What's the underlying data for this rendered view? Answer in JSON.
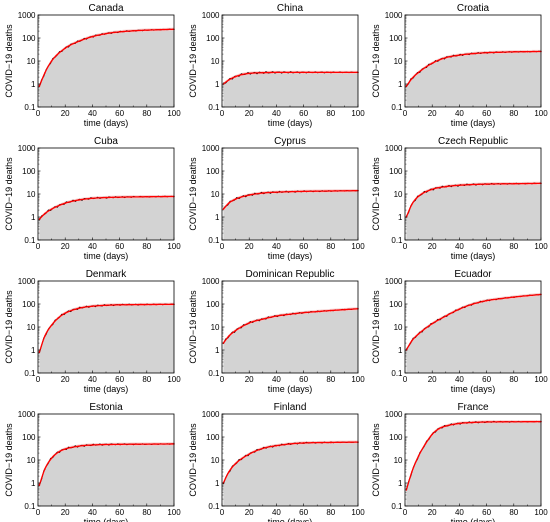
{
  "chart_data": [
    {
      "type": "area",
      "title": "Canada",
      "xlabel": "time (days)",
      "ylabel": "COVID−19 deaths",
      "xlim": [
        0,
        100
      ],
      "ylim": [
        0.1,
        1000
      ],
      "y_scale": "log",
      "x_ticks": [
        "0",
        "20",
        "40",
        "60",
        "80",
        "100"
      ],
      "y_ticks": [
        "0.1",
        "1",
        "10",
        "100",
        "1000"
      ],
      "grid": false,
      "fill_color": "#d3d3d3",
      "line_color": "#ff0000",
      "band_color": "#f4c6c6",
      "data_color": "#000000",
      "series": [
        {
          "x": [
            1,
            5,
            10,
            20,
            30,
            40,
            50,
            60,
            70,
            80,
            90,
            100
          ],
          "values": [
            0.8,
            3,
            10,
            36,
            72,
            115,
            155,
            185,
            205,
            220,
            230,
            240
          ]
        }
      ]
    },
    {
      "type": "area",
      "title": "China",
      "xlabel": "time (days)",
      "ylabel": "COVID−19 deaths",
      "xlim": [
        0,
        100
      ],
      "ylim": [
        0.1,
        1000
      ],
      "y_scale": "log",
      "x_ticks": [
        "0",
        "20",
        "40",
        "60",
        "80",
        "100"
      ],
      "y_ticks": [
        "0.1",
        "1",
        "10",
        "100",
        "1000"
      ],
      "grid": false,
      "fill_color": "#d3d3d3",
      "line_color": "#ff0000",
      "band_color": "#f4c6c6",
      "data_color": "#000000",
      "series": [
        {
          "x": [
            1,
            5,
            10,
            15,
            20,
            30,
            40,
            60,
            80,
            100
          ],
          "values": [
            1,
            1.5,
            2.1,
            2.6,
            2.9,
            3.1,
            3.2,
            3.2,
            3.2,
            3.2
          ]
        }
      ]
    },
    {
      "type": "area",
      "title": "Croatia",
      "xlabel": "time (days)",
      "ylabel": "COVID−19 deaths",
      "xlim": [
        0,
        100
      ],
      "ylim": [
        0.1,
        1000
      ],
      "y_scale": "log",
      "x_ticks": [
        "0",
        "20",
        "40",
        "60",
        "80",
        "100"
      ],
      "y_ticks": [
        "0.1",
        "1",
        "10",
        "100",
        "1000"
      ],
      "grid": false,
      "fill_color": "#d3d3d3",
      "line_color": "#ff0000",
      "band_color": "#f4c6c6",
      "data_color": "#000000",
      "series": [
        {
          "x": [
            1,
            5,
            10,
            20,
            30,
            40,
            50,
            60,
            70,
            80,
            90,
            100
          ],
          "values": [
            0.8,
            1.7,
            3.2,
            8,
            14,
            18,
            21,
            23,
            24,
            25,
            25.5,
            26
          ]
        }
      ]
    },
    {
      "type": "area",
      "title": "Cuba",
      "xlabel": "time (days)",
      "ylabel": "COVID−19 deaths",
      "xlim": [
        0,
        100
      ],
      "ylim": [
        0.1,
        1000
      ],
      "y_scale": "log",
      "x_ticks": [
        "0",
        "20",
        "40",
        "60",
        "80",
        "100"
      ],
      "y_ticks": [
        "0.1",
        "1",
        "10",
        "100",
        "1000"
      ],
      "grid": false,
      "fill_color": "#d3d3d3",
      "line_color": "#ff0000",
      "band_color": "#f4c6c6",
      "data_color": "#000000",
      "series": [
        {
          "x": [
            1,
            5,
            10,
            20,
            30,
            40,
            50,
            60,
            80,
            100
          ],
          "values": [
            0.8,
            1.4,
            2.2,
            4,
            5.5,
            6.5,
            7,
            7.3,
            7.6,
            7.8
          ]
        }
      ]
    },
    {
      "type": "area",
      "title": "Cyprus",
      "xlabel": "time (days)",
      "ylabel": "COVID−19 deaths",
      "xlim": [
        0,
        100
      ],
      "ylim": [
        0.1,
        1000
      ],
      "y_scale": "log",
      "x_ticks": [
        "0",
        "20",
        "40",
        "60",
        "80",
        "100"
      ],
      "y_ticks": [
        "0.1",
        "1",
        "10",
        "100",
        "1000"
      ],
      "grid": false,
      "fill_color": "#d3d3d3",
      "line_color": "#ff0000",
      "band_color": "#f4c6c6",
      "data_color": "#000000",
      "series": [
        {
          "x": [
            1,
            5,
            10,
            20,
            30,
            40,
            60,
            80,
            100
          ],
          "values": [
            2.2,
            4,
            6,
            9,
            11,
            12,
            13,
            13.5,
            14
          ]
        }
      ]
    },
    {
      "type": "area",
      "title": "Czech Republic",
      "xlabel": "time (days)",
      "ylabel": "COVID−19 deaths",
      "xlim": [
        0,
        100
      ],
      "ylim": [
        0.1,
        1000
      ],
      "y_scale": "log",
      "x_ticks": [
        "0",
        "20",
        "40",
        "60",
        "80",
        "100"
      ],
      "y_ticks": [
        "0.1",
        "1",
        "10",
        "100",
        "1000"
      ],
      "grid": false,
      "fill_color": "#d3d3d3",
      "line_color": "#ff0000",
      "band_color": "#f4c6c6",
      "data_color": "#000000",
      "series": [
        {
          "x": [
            1,
            5,
            10,
            20,
            30,
            40,
            60,
            80,
            100
          ],
          "values": [
            1,
            3.5,
            8,
            16,
            21,
            24,
            27,
            28,
            29
          ]
        }
      ]
    },
    {
      "type": "area",
      "title": "Denmark",
      "xlabel": "time (days)",
      "ylabel": "COVID−19 deaths",
      "xlim": [
        0,
        100
      ],
      "ylim": [
        0.1,
        1000
      ],
      "y_scale": "log",
      "x_ticks": [
        "0",
        "20",
        "40",
        "60",
        "80",
        "100"
      ],
      "y_ticks": [
        "0.1",
        "1",
        "10",
        "100",
        "1000"
      ],
      "grid": false,
      "fill_color": "#d3d3d3",
      "line_color": "#ff0000",
      "band_color": "#f4c6c6",
      "data_color": "#000000",
      "series": [
        {
          "x": [
            1,
            5,
            10,
            15,
            20,
            30,
            40,
            50,
            60,
            80,
            100
          ],
          "values": [
            0.8,
            4,
            12,
            25,
            40,
            65,
            80,
            88,
            92,
            95,
            97
          ]
        }
      ]
    },
    {
      "type": "area",
      "title": "Dominican Republic",
      "xlabel": "time (days)",
      "ylabel": "COVID−19 deaths",
      "xlim": [
        0,
        100
      ],
      "ylim": [
        0.1,
        1000
      ],
      "y_scale": "log",
      "x_ticks": [
        "0",
        "20",
        "40",
        "60",
        "80",
        "100"
      ],
      "y_ticks": [
        "0.1",
        "1",
        "10",
        "100",
        "1000"
      ],
      "grid": false,
      "fill_color": "#d3d3d3",
      "line_color": "#ff0000",
      "band_color": "#f4c6c6",
      "data_color": "#000000",
      "series": [
        {
          "x": [
            1,
            5,
            10,
            20,
            30,
            40,
            50,
            60,
            70,
            80,
            90,
            100
          ],
          "values": [
            2,
            4,
            7,
            15,
            22,
            30,
            36,
            42,
            47,
            52,
            57,
            62
          ]
        }
      ]
    },
    {
      "type": "area",
      "title": "Ecuador",
      "xlabel": "time (days)",
      "ylabel": "COVID−19 deaths",
      "xlim": [
        0,
        100
      ],
      "ylim": [
        0.1,
        1000
      ],
      "y_scale": "log",
      "x_ticks": [
        "0",
        "20",
        "40",
        "60",
        "80",
        "100"
      ],
      "y_ticks": [
        "0.1",
        "1",
        "10",
        "100",
        "1000"
      ],
      "grid": false,
      "fill_color": "#d3d3d3",
      "line_color": "#ff0000",
      "band_color": "#f4c6c6",
      "data_color": "#000000",
      "series": [
        {
          "x": [
            1,
            5,
            10,
            20,
            30,
            40,
            50,
            60,
            70,
            80,
            90,
            100
          ],
          "values": [
            1,
            2.5,
            5,
            14,
            30,
            60,
            100,
            140,
            170,
            200,
            230,
            260
          ]
        }
      ]
    },
    {
      "type": "area",
      "title": "Estonia",
      "xlabel": "time (days)",
      "ylabel": "COVID−19 deaths",
      "xlim": [
        0,
        100
      ],
      "ylim": [
        0.1,
        1000
      ],
      "y_scale": "log",
      "x_ticks": [
        "0",
        "20",
        "40",
        "60",
        "80",
        "100"
      ],
      "y_ticks": [
        "0.1",
        "1",
        "10",
        "100",
        "1000"
      ],
      "grid": false,
      "fill_color": "#d3d3d3",
      "line_color": "#ff0000",
      "band_color": "#f4c6c6",
      "data_color": "#000000",
      "series": [
        {
          "x": [
            1,
            5,
            10,
            15,
            20,
            30,
            40,
            60,
            80,
            100
          ],
          "values": [
            0.8,
            4,
            12,
            22,
            30,
            40,
            45,
            48,
            49,
            50
          ]
        }
      ]
    },
    {
      "type": "area",
      "title": "Finland",
      "xlabel": "time (days)",
      "ylabel": "COVID−19 deaths",
      "xlim": [
        0,
        100
      ],
      "ylim": [
        0.1,
        1000
      ],
      "y_scale": "log",
      "x_ticks": [
        "0",
        "20",
        "40",
        "60",
        "80",
        "100"
      ],
      "y_ticks": [
        "0.1",
        "1",
        "10",
        "100",
        "1000"
      ],
      "grid": false,
      "fill_color": "#d3d3d3",
      "line_color": "#ff0000",
      "band_color": "#f4c6c6",
      "data_color": "#000000",
      "series": [
        {
          "x": [
            1,
            5,
            10,
            20,
            30,
            40,
            50,
            60,
            80,
            100
          ],
          "values": [
            1,
            3,
            7,
            18,
            32,
            42,
            50,
            55,
            58,
            60
          ]
        }
      ]
    },
    {
      "type": "area",
      "title": "France",
      "xlabel": "time (days)",
      "ylabel": "COVID−19 deaths",
      "xlim": [
        0,
        100
      ],
      "ylim": [
        0.1,
        1000
      ],
      "y_scale": "log",
      "x_ticks": [
        "0",
        "20",
        "40",
        "60",
        "80",
        "100"
      ],
      "y_ticks": [
        "0.1",
        "1",
        "10",
        "100",
        "1000"
      ],
      "grid": false,
      "fill_color": "#d3d3d3",
      "line_color": "#ff0000",
      "band_color": "#f4c6c6",
      "data_color": "#000000",
      "series": [
        {
          "x": [
            1,
            5,
            10,
            15,
            20,
            25,
            30,
            40,
            50,
            60,
            80,
            100
          ],
          "values": [
            0.5,
            3,
            15,
            50,
            130,
            230,
            300,
            390,
            430,
            450,
            460,
            465
          ]
        }
      ]
    }
  ]
}
